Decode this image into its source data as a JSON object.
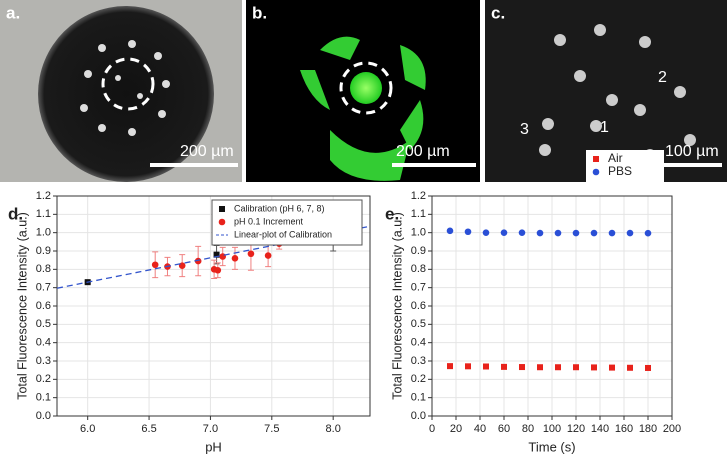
{
  "images": [
    {
      "label": "a.",
      "scale": "200 µm"
    },
    {
      "label": "b.",
      "scale": "200 µm"
    },
    {
      "label": "c.",
      "scale": "100 µm",
      "markers": [
        "1",
        "2",
        "3"
      ]
    }
  ],
  "chart_data": [
    {
      "type": "scatter",
      "label": "d.",
      "x_label": "pH",
      "y_label": "Total Fluorescence Intensity (a.u.)",
      "xlim": [
        5.75,
        8.3
      ],
      "ylim": [
        0,
        1.2
      ],
      "xticks": [
        {
          "value": 6,
          "label": "6.0"
        },
        {
          "value": 6.5,
          "label": "6.5"
        },
        {
          "value": 7,
          "label": "7.0"
        },
        {
          "value": 7.5,
          "label": "7.5"
        },
        {
          "value": 8,
          "label": "8.0"
        }
      ],
      "yticks": [
        {
          "value": 0,
          "label": "0.0"
        },
        0.1,
        0.2,
        0.3,
        0.4,
        0.5,
        0.6,
        0.7,
        0.8,
        0.9,
        {
          "value": 1,
          "label": "1.0"
        },
        1.1,
        1.2
      ],
      "grid": true,
      "legend": "upper right",
      "series": [
        {
          "name": "Calibration (pH 6, 7, 8)",
          "color": "#111111",
          "marker": "square",
          "x": [
            6,
            7.05,
            8
          ],
          "values": [
            0.73,
            0.88,
            1.0
          ],
          "errors": [
            0.005,
            0.05,
            0.1
          ]
        },
        {
          "name": "pH 0.1 Increment",
          "color": "#e8221b",
          "marker": "circle",
          "x": [
            6.55,
            6.65,
            6.77,
            6.9,
            7.03,
            7.06,
            7.1,
            7.2,
            7.33,
            7.47,
            7.56
          ],
          "values": [
            0.825,
            0.815,
            0.82,
            0.845,
            0.8,
            0.795,
            0.87,
            0.86,
            0.885,
            0.875,
            0.94
          ],
          "errors": [
            0.07,
            0.05,
            0.06,
            0.08,
            0.05,
            0.04,
            0.05,
            0.06,
            0.09,
            0.06,
            0.03
          ]
        },
        {
          "name": "Linear-plot of Calibration",
          "color": "#3355cc",
          "marker": "dashed-line",
          "x": [
            5.75,
            8.3
          ],
          "values": [
            0.697,
            1.035
          ]
        }
      ]
    },
    {
      "type": "scatter",
      "label": "e.",
      "x_label": "Time (s)",
      "y_label": "Total Fluorescence Intensity (a.u.)",
      "xlim": [
        0,
        200
      ],
      "ylim": [
        0,
        1.2
      ],
      "xticks": [
        0,
        20,
        40,
        60,
        80,
        100,
        120,
        140,
        160,
        180,
        200
      ],
      "yticks": [
        {
          "value": 0,
          "label": "0.0"
        },
        0.1,
        0.2,
        0.3,
        0.4,
        0.5,
        0.6,
        0.7,
        0.8,
        0.9,
        {
          "value": 1,
          "label": "1.0"
        },
        1.1,
        1.2
      ],
      "grid": true,
      "legend": "upper right",
      "series": [
        {
          "name": "Air",
          "color": "#e8221b",
          "marker": "square",
          "x": [
            15,
            30,
            45,
            60,
            75,
            90,
            105,
            120,
            135,
            150,
            165,
            180
          ],
          "values": [
            0.272,
            0.271,
            0.27,
            0.268,
            0.267,
            0.266,
            0.266,
            0.266,
            0.265,
            0.264,
            0.263,
            0.262
          ]
        },
        {
          "name": "PBS",
          "color": "#2a4fd6",
          "marker": "circle",
          "x": [
            15,
            30,
            45,
            60,
            75,
            90,
            105,
            120,
            135,
            150,
            165,
            180
          ],
          "values": [
            1.01,
            1.005,
            1.0,
            1.0,
            1.0,
            0.998,
            0.998,
            0.998,
            0.998,
            0.998,
            0.998,
            0.997
          ]
        }
      ]
    }
  ]
}
